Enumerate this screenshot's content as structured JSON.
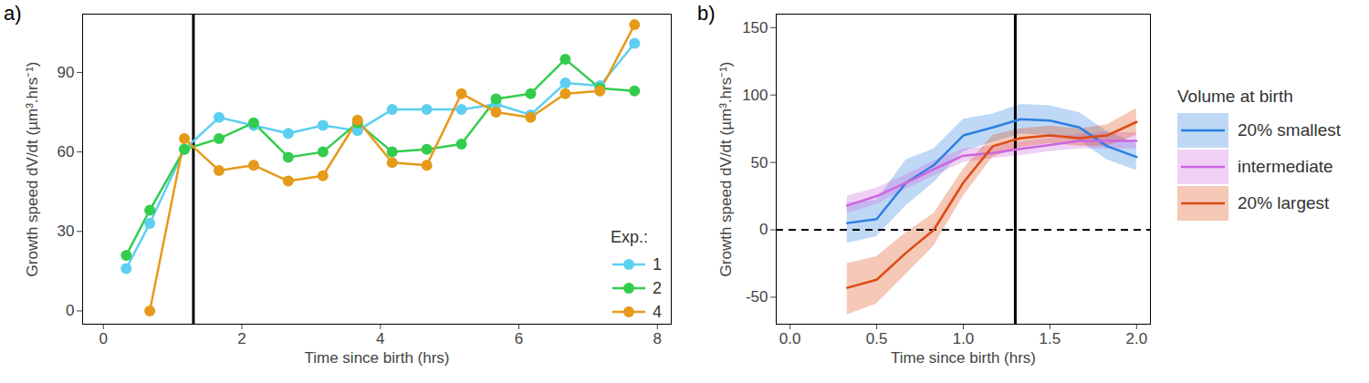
{
  "chart_data": [
    {
      "type": "line",
      "title": "a)",
      "xlabel": "Time since birth (hrs)",
      "ylabel": "Growth speed dV/dt (µm³.hrs⁻¹)",
      "x": [
        0.33,
        0.67,
        1.17,
        1.67,
        2.17,
        2.67,
        3.17,
        3.67,
        4.17,
        4.67,
        5.17,
        5.67,
        6.17,
        6.67,
        7.17,
        7.67
      ],
      "series": [
        {
          "name": "1",
          "color": "#5ccff0",
          "marker": "circle",
          "values": [
            16,
            33,
            61,
            73,
            70,
            67,
            70,
            68,
            76,
            76,
            76,
            78,
            74,
            86,
            85,
            101
          ]
        },
        {
          "name": "2",
          "color": "#33cc4d",
          "marker": "circle",
          "values": [
            21,
            38,
            61,
            65,
            71,
            58,
            60,
            71,
            60,
            61,
            63,
            80,
            82,
            95,
            84,
            83
          ]
        },
        {
          "name": "4",
          "color": "#e69a1a",
          "marker": "circle",
          "values": [
            null,
            0,
            65,
            53,
            55,
            49,
            51,
            72,
            56,
            55,
            82,
            75,
            73,
            82,
            83,
            108
          ]
        }
      ],
      "legend_title": "Exp.:",
      "legend": "lower right",
      "vline": 1.3,
      "xlim": [
        -0.3,
        8.2
      ],
      "xticks": [
        0,
        2,
        4,
        6,
        8
      ],
      "ylim": [
        -5,
        112
      ],
      "yticks": [
        0,
        30,
        60,
        90
      ],
      "grid": false
    },
    {
      "type": "line",
      "title": "b)",
      "xlabel": "Time since birth (hrs)",
      "ylabel": "Growth speed dV/dt (µm³.hrs⁻¹)",
      "x": [
        0.33,
        0.5,
        0.67,
        0.83,
        1.0,
        1.17,
        1.33,
        1.5,
        1.67,
        1.83,
        2.0
      ],
      "series": [
        {
          "name": "20% smallest",
          "color": "#2b7fe0",
          "values": [
            5,
            8,
            35,
            48,
            70,
            76,
            82,
            81,
            76,
            62,
            54
          ],
          "lower": [
            -10,
            -5,
            18,
            35,
            58,
            65,
            71,
            70,
            66,
            52,
            44
          ],
          "upper": [
            20,
            22,
            52,
            60,
            82,
            86,
            93,
            92,
            87,
            73,
            64
          ]
        },
        {
          "name": "intermediate",
          "color": "#cc66dd",
          "values": [
            18,
            25,
            35,
            45,
            55,
            57,
            60,
            63,
            66,
            66,
            66
          ],
          "lower": [
            12,
            19,
            30,
            40,
            50,
            53,
            55,
            58,
            60,
            60,
            60
          ],
          "upper": [
            25,
            31,
            41,
            51,
            60,
            62,
            65,
            68,
            71,
            72,
            72
          ]
        },
        {
          "name": "20% largest",
          "color": "#dd4a12",
          "values": [
            -43,
            -37,
            -17,
            0,
            35,
            62,
            68,
            70,
            68,
            70,
            80
          ],
          "lower": [
            -63,
            -55,
            -33,
            -12,
            25,
            54,
            61,
            64,
            62,
            62,
            70
          ],
          "upper": [
            -25,
            -20,
            -2,
            12,
            45,
            70,
            75,
            77,
            75,
            78,
            90
          ]
        }
      ],
      "legend_title": "Volume at birth",
      "legend": "right",
      "vline": 1.3,
      "hline": 0,
      "xlim": [
        -0.08,
        2.08
      ],
      "xticks": [
        {
          "value": 0,
          "label": "0.0"
        },
        {
          "value": 0.5,
          "label": "0.5"
        },
        {
          "value": 1,
          "label": "1.0"
        },
        {
          "value": 1.5,
          "label": "1.5"
        },
        {
          "value": 2,
          "label": "2.0"
        }
      ],
      "ylim": [
        -70,
        160
      ],
      "yticks": [
        -50,
        0,
        50,
        100,
        150
      ],
      "grid": false
    }
  ]
}
